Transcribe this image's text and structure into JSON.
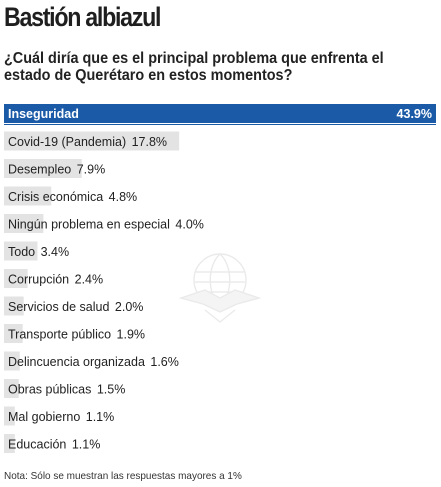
{
  "header": {
    "title": "Bastión albiazul",
    "question": "¿Cuál diría que es el principal problema que enfrenta el estado de Querétaro en estos momentos?"
  },
  "note": "Nota: Sólo se muestran las respuestas mayores a 1%",
  "colors": {
    "highlight": "#1a5aa6",
    "bar": "#e3e3e3",
    "text": "#222222"
  },
  "chart_data": {
    "type": "bar",
    "orientation": "horizontal",
    "title": "",
    "xlabel": "",
    "ylabel": "",
    "xlim": [
      0,
      43.9
    ],
    "grid": false,
    "categories": [
      "Inseguridad",
      "Covid-19 (Pandemia)",
      "Desempleo",
      "Crisis económica",
      "Ningún problema en especial",
      "Todo",
      "Corrupción",
      "Servicios de salud",
      "Transporte público",
      "Delincuencia organizada",
      "Obras públicas",
      "Mal gobierno",
      "Educación"
    ],
    "values": [
      43.9,
      17.8,
      7.9,
      4.8,
      4.0,
      3.4,
      2.4,
      2.0,
      1.9,
      1.6,
      1.5,
      1.1,
      1.1
    ],
    "value_labels": [
      "43.9%",
      "17.8%",
      "7.9%",
      "4.8%",
      "4.0%",
      "3.4%",
      "2.4%",
      "2.0%",
      "1.9%",
      "1.6%",
      "1.5%",
      "1.1%",
      "1.1%"
    ],
    "highlight_index": 0
  }
}
